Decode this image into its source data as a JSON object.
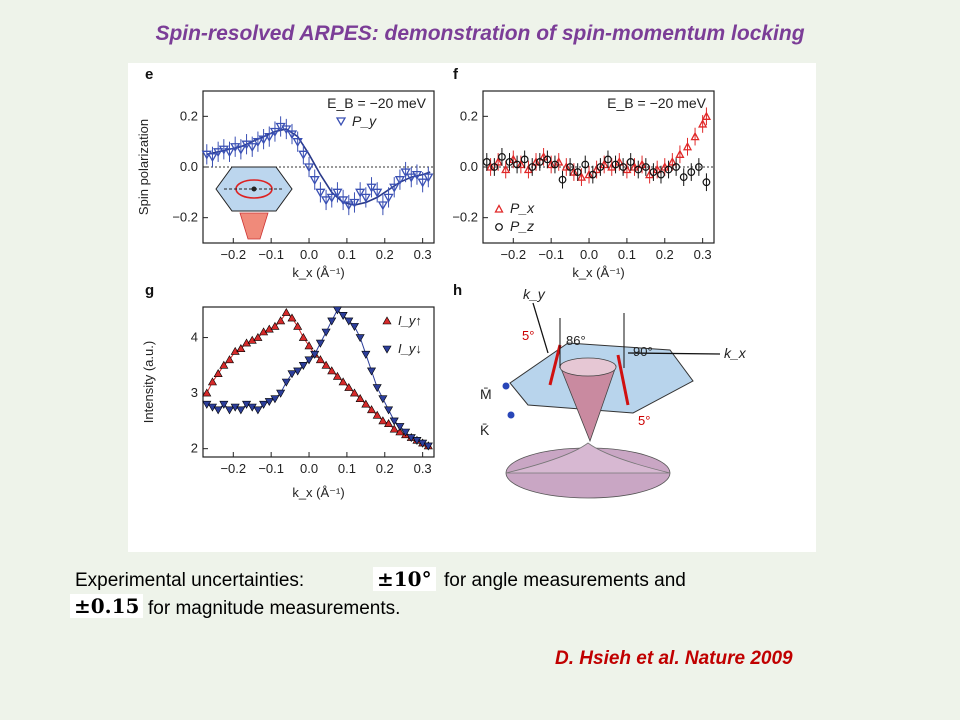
{
  "title": "Spin-resolved ARPES: demonstration of spin-momentum locking",
  "notes": {
    "line1_prefix": "Experimental uncertainties:",
    "angle_value": "±10°",
    "line1_suffix": "for angle measurements and",
    "magnitude_value": "±0.15",
    "line2_suffix": "for magnitude measurements."
  },
  "citation": "D. Hsieh et al. Nature 2009",
  "chart_data": [
    {
      "panel": "e",
      "type": "scatter",
      "annotation": "E_B = −20 meV",
      "ylabel": "Spin polarization",
      "xlabel": "k_x (Å⁻¹)",
      "xlim": [
        -0.28,
        0.33
      ],
      "ylim": [
        -0.3,
        0.3
      ],
      "xticks": [
        "−0.2",
        "−0.1",
        "0.0",
        "0.1",
        "0.2",
        "0.3"
      ],
      "yticks": [
        "0.2",
        "0.0",
        "−0.2"
      ],
      "color": "#3a50b4",
      "series": [
        {
          "name": "P_y",
          "x": [
            -0.27,
            -0.255,
            -0.24,
            -0.225,
            -0.21,
            -0.195,
            -0.18,
            -0.165,
            -0.15,
            -0.135,
            -0.12,
            -0.105,
            -0.09,
            -0.075,
            -0.06,
            -0.045,
            -0.03,
            -0.015,
            0.0,
            0.015,
            0.03,
            0.045,
            0.06,
            0.075,
            0.09,
            0.105,
            0.12,
            0.135,
            0.15,
            0.165,
            0.18,
            0.195,
            0.21,
            0.225,
            0.24,
            0.255,
            0.27,
            0.285,
            0.3,
            0.315
          ],
          "y": [
            0.05,
            0.04,
            0.06,
            0.07,
            0.06,
            0.08,
            0.07,
            0.09,
            0.08,
            0.1,
            0.11,
            0.12,
            0.14,
            0.16,
            0.15,
            0.13,
            0.1,
            0.05,
            0.0,
            -0.05,
            -0.1,
            -0.13,
            -0.12,
            -0.1,
            -0.13,
            -0.15,
            -0.14,
            -0.1,
            -0.12,
            -0.08,
            -0.1,
            -0.15,
            -0.12,
            -0.08,
            -0.05,
            -0.02,
            -0.04,
            -0.03,
            -0.06,
            -0.04
          ],
          "fit_x": [
            -0.27,
            -0.24,
            -0.21,
            -0.18,
            -0.15,
            -0.12,
            -0.09,
            -0.06,
            -0.03,
            0.0,
            0.03,
            0.06,
            0.09,
            0.12,
            0.15,
            0.18,
            0.21,
            0.24,
            0.27,
            0.3,
            0.32
          ],
          "fit_y": [
            0.05,
            0.06,
            0.07,
            0.08,
            0.1,
            0.12,
            0.14,
            0.15,
            0.12,
            0.05,
            -0.03,
            -0.1,
            -0.14,
            -0.15,
            -0.14,
            -0.12,
            -0.09,
            -0.06,
            -0.04,
            -0.03,
            -0.02
          ]
        }
      ]
    },
    {
      "panel": "f",
      "type": "scatter",
      "annotation": "E_B = −20 meV",
      "xlabel": "k_x (Å⁻¹)",
      "xlim": [
        -0.28,
        0.33
      ],
      "ylim": [
        -0.3,
        0.3
      ],
      "xticks": [
        "−0.2",
        "−0.1",
        "0.0",
        "0.1",
        "0.2",
        "0.3"
      ],
      "yticks": [
        "0.2",
        "0.0",
        "−0.2"
      ],
      "series": [
        {
          "name": "P_x",
          "color": "#e02828",
          "x": [
            -0.26,
            -0.24,
            -0.22,
            -0.2,
            -0.18,
            -0.16,
            -0.14,
            -0.12,
            -0.1,
            -0.08,
            -0.06,
            -0.04,
            -0.02,
            0.0,
            0.02,
            0.04,
            0.06,
            0.08,
            0.1,
            0.12,
            0.14,
            0.16,
            0.18,
            0.2,
            0.22,
            0.24,
            0.26,
            0.28,
            0.3,
            0.31
          ],
          "y": [
            0.0,
            0.02,
            -0.01,
            0.03,
            0.01,
            -0.01,
            0.02,
            0.04,
            0.01,
            0.02,
            0.0,
            -0.02,
            -0.04,
            -0.03,
            -0.01,
            0.01,
            0.0,
            0.02,
            -0.01,
            0.0,
            0.01,
            -0.03,
            -0.01,
            0.0,
            0.02,
            0.05,
            0.08,
            0.12,
            0.17,
            0.2
          ]
        },
        {
          "name": "P_z",
          "color": "#111111",
          "x": [
            -0.27,
            -0.25,
            -0.23,
            -0.21,
            -0.19,
            -0.17,
            -0.15,
            -0.13,
            -0.11,
            -0.09,
            -0.07,
            -0.05,
            -0.03,
            -0.01,
            0.01,
            0.03,
            0.05,
            0.07,
            0.09,
            0.11,
            0.13,
            0.15,
            0.17,
            0.19,
            0.21,
            0.23,
            0.25,
            0.27,
            0.29,
            0.31
          ],
          "y": [
            0.02,
            0.0,
            0.04,
            0.02,
            0.01,
            0.03,
            0.0,
            0.02,
            0.03,
            0.01,
            -0.05,
            0.0,
            -0.02,
            0.01,
            -0.03,
            0.0,
            0.03,
            0.01,
            0.0,
            0.02,
            -0.01,
            0.0,
            -0.02,
            -0.03,
            -0.01,
            0.0,
            -0.04,
            -0.02,
            0.0,
            -0.06
          ]
        }
      ]
    },
    {
      "panel": "g",
      "type": "scatter",
      "ylabel": "Intensity (a.u.)",
      "xlabel": "k_x (Å⁻¹)",
      "xlim": [
        -0.28,
        0.33
      ],
      "ylim": [
        1.85,
        4.55
      ],
      "xticks": [
        "−0.2",
        "−0.1",
        "0.0",
        "0.1",
        "0.2",
        "0.3"
      ],
      "yticks": [
        "4",
        "3",
        "2"
      ],
      "series": [
        {
          "name": "I_y↑",
          "color": "#d62a2a",
          "x": [
            -0.27,
            -0.255,
            -0.24,
            -0.225,
            -0.21,
            -0.195,
            -0.18,
            -0.165,
            -0.15,
            -0.135,
            -0.12,
            -0.105,
            -0.09,
            -0.075,
            -0.06,
            -0.045,
            -0.03,
            -0.015,
            0.0,
            0.015,
            0.03,
            0.045,
            0.06,
            0.075,
            0.09,
            0.105,
            0.12,
            0.135,
            0.15,
            0.165,
            0.18,
            0.195,
            0.21,
            0.225,
            0.24,
            0.255,
            0.27,
            0.285,
            0.3,
            0.315
          ],
          "y": [
            3.0,
            3.2,
            3.35,
            3.5,
            3.6,
            3.75,
            3.8,
            3.9,
            3.95,
            4.0,
            4.1,
            4.15,
            4.2,
            4.3,
            4.45,
            4.35,
            4.2,
            4.0,
            3.85,
            3.7,
            3.6,
            3.5,
            3.4,
            3.3,
            3.2,
            3.1,
            3.0,
            2.9,
            2.8,
            2.7,
            2.6,
            2.5,
            2.45,
            2.35,
            2.3,
            2.25,
            2.2,
            2.15,
            2.1,
            2.05
          ]
        },
        {
          "name": "I_y↓",
          "color": "#2c3e9a",
          "x": [
            -0.27,
            -0.255,
            -0.24,
            -0.225,
            -0.21,
            -0.195,
            -0.18,
            -0.165,
            -0.15,
            -0.135,
            -0.12,
            -0.105,
            -0.09,
            -0.075,
            -0.06,
            -0.045,
            -0.03,
            -0.015,
            0.0,
            0.015,
            0.03,
            0.045,
            0.06,
            0.075,
            0.09,
            0.105,
            0.12,
            0.135,
            0.15,
            0.165,
            0.18,
            0.195,
            0.21,
            0.225,
            0.24,
            0.255,
            0.27,
            0.285,
            0.3,
            0.315
          ],
          "y": [
            2.8,
            2.75,
            2.7,
            2.8,
            2.7,
            2.75,
            2.7,
            2.8,
            2.75,
            2.7,
            2.8,
            2.85,
            2.9,
            3.0,
            3.2,
            3.35,
            3.4,
            3.5,
            3.6,
            3.7,
            3.9,
            4.1,
            4.3,
            4.5,
            4.4,
            4.3,
            4.2,
            4.0,
            3.7,
            3.4,
            3.1,
            2.9,
            2.7,
            2.5,
            2.4,
            2.3,
            2.2,
            2.15,
            2.1,
            2.05
          ]
        }
      ]
    }
  ],
  "panel_h": {
    "label": "h",
    "axis_x": "k_x",
    "axis_y": "k_y",
    "angle_1": "86°",
    "angle_2": "90°",
    "angle_3": "5°",
    "angle_4": "5°",
    "point_1": "M̄",
    "point_2": "K̄"
  },
  "panel_labels": [
    "e",
    "f",
    "g"
  ]
}
